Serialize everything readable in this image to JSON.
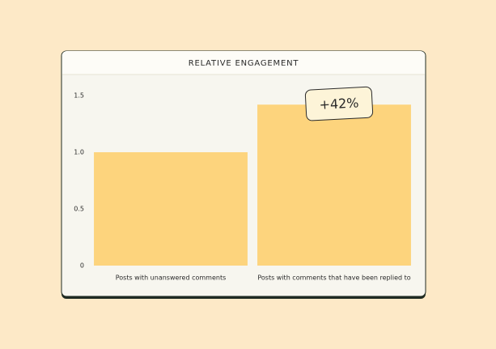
{
  "chart_data": {
    "type": "bar",
    "title": "RELATIVE ENGAGEMENT",
    "categories": [
      "Posts with unanswered comments",
      "Posts with comments that have been replied to"
    ],
    "values": [
      1.0,
      1.42
    ],
    "color": "#fdd47d",
    "ylim": [
      0,
      1.5
    ],
    "yticks": [
      0,
      0.5,
      {
        "value": 1,
        "label": "1.0"
      },
      1.5
    ],
    "annotations": [
      "+42%"
    ]
  }
}
